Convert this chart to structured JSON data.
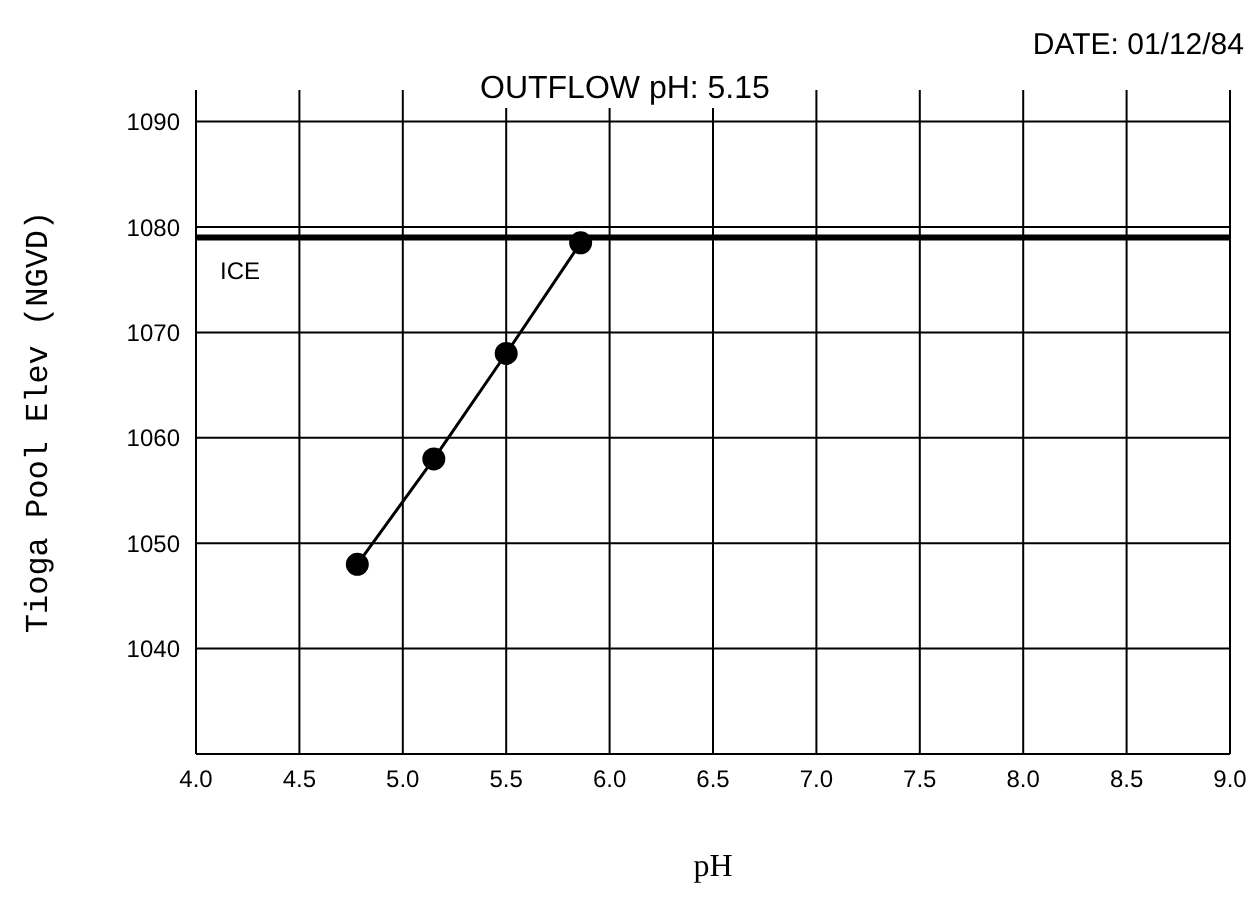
{
  "chart_data": {
    "type": "line",
    "xlabel": "pH",
    "ylabel": "Tioga Pool Elev (NGVD)",
    "annotations": [
      "DATE: 01/12/84",
      "OUTFLOW pH: 5.15"
    ],
    "x": [
      4.78,
      5.15,
      5.5,
      5.86
    ],
    "values": [
      1048,
      1058,
      1068,
      1078.5
    ],
    "color": "#000000",
    "marker": "circle",
    "xlim": [
      4.0,
      9.0
    ],
    "xticks": [
      {
        "value": 4.0,
        "label": "4.0"
      },
      4.5,
      {
        "value": 5.0,
        "label": "5.0"
      },
      5.5,
      {
        "value": 6.0,
        "label": "6.0"
      },
      6.5,
      {
        "value": 7.0,
        "label": "7.0"
      },
      7.5,
      {
        "value": 8.0,
        "label": "8.0"
      },
      8.5,
      {
        "value": 9.0,
        "label": "9.0"
      }
    ],
    "ylim": [
      1030,
      1093
    ],
    "yticks": [
      1040,
      1050,
      1060,
      1070,
      1080,
      1090
    ],
    "ref_lines": [
      {
        "axis": "y",
        "value": 1079,
        "label": "ICE",
        "color": "#000000"
      }
    ],
    "grid": true
  }
}
